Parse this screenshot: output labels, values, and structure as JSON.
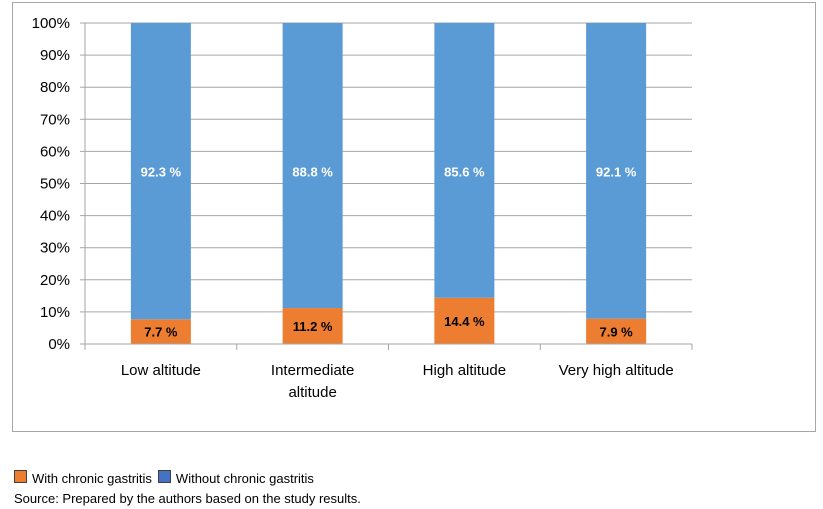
{
  "chart_data": {
    "type": "bar",
    "stacked": true,
    "percent_stacked": true,
    "categories": [
      "Low altitude",
      "Intermediate altitude",
      "High altitude",
      "Very high altitude"
    ],
    "category_lines": [
      [
        "Low altitude"
      ],
      [
        "Intermediate",
        "altitude"
      ],
      [
        "High altitude"
      ],
      [
        "Very high altitude"
      ]
    ],
    "series": [
      {
        "name": "With chronic gastritis",
        "values": [
          7.7,
          11.2,
          14.4,
          7.9
        ],
        "labels": [
          "7.7 %",
          "11.2 %",
          "14.4 %",
          "7.9 %"
        ],
        "color": "#ed7d31",
        "label_color": "#000000"
      },
      {
        "name": "Without chronic gastritis",
        "values": [
          92.3,
          88.8,
          85.6,
          92.1
        ],
        "labels": [
          "92.3 %",
          "88.8 %",
          "85.6 %",
          "92.1 %"
        ],
        "color": "#5b9bd5",
        "label_color": "#ffffff"
      }
    ],
    "y_ticks": [
      "0%",
      "10%",
      "20%",
      "30%",
      "40%",
      "50%",
      "60%",
      "70%",
      "80%",
      "90%",
      "100%"
    ],
    "ylim": [
      0,
      100
    ],
    "grid": true,
    "legend_position": "bottom-left"
  },
  "legend": {
    "with_label": "With chronic gastritis",
    "without_label": "Without chronic gastritis",
    "with_color": "#ed7d31",
    "without_color": "#4472c4"
  },
  "source": "Source: Prepared by the authors based on the study results."
}
